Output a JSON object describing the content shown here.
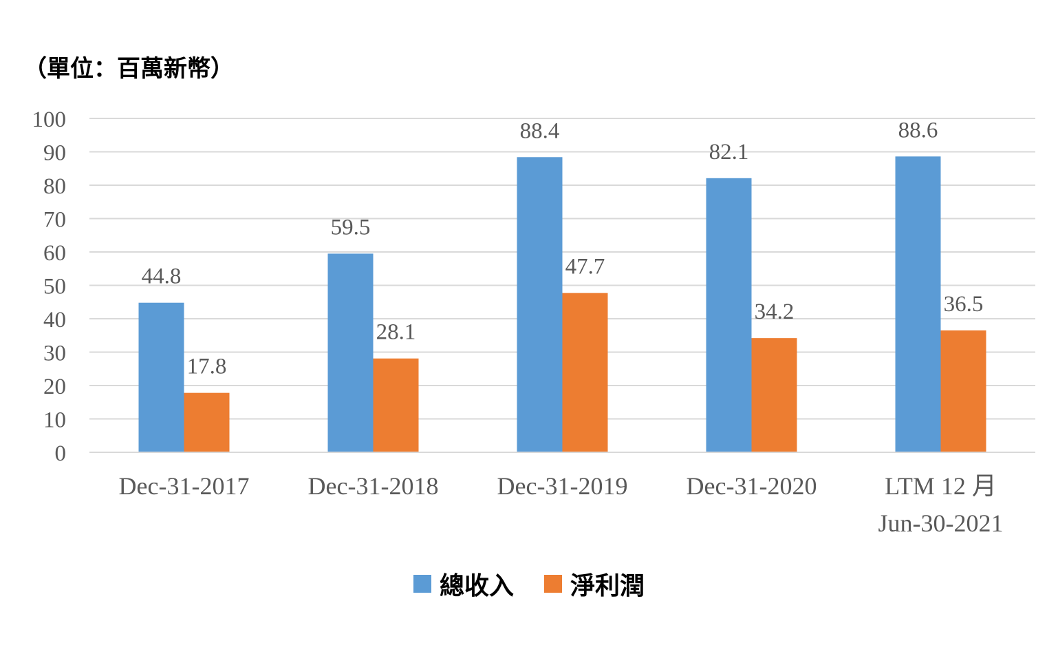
{
  "chart_data": {
    "type": "bar",
    "unit_label": "（單位：百萬新幣）",
    "categories": [
      [
        "Dec-31-2017"
      ],
      [
        "Dec-31-2018"
      ],
      [
        "Dec-31-2019"
      ],
      [
        "Dec-31-2020"
      ],
      [
        "LTM 12 月",
        "Jun-30-2021"
      ]
    ],
    "series": [
      {
        "name": "總收入",
        "color": "#5B9BD5",
        "values": [
          44.8,
          59.5,
          88.4,
          82.1,
          88.6
        ],
        "labels": [
          "44.8",
          "59.5",
          "88.4",
          "82.1",
          "88.6"
        ]
      },
      {
        "name": "淨利潤",
        "color": "#ED7D31",
        "values": [
          17.8,
          28.1,
          47.7,
          34.2,
          36.5
        ],
        "labels": [
          "17.8",
          "28.1",
          "47.7",
          "34.2",
          "36.5"
        ]
      }
    ],
    "ylim": [
      0,
      100
    ],
    "yticks": [
      "0",
      "10",
      "20",
      "30",
      "40",
      "50",
      "60",
      "70",
      "80",
      "90",
      "100"
    ],
    "grid": true,
    "legend_position": "bottom"
  }
}
